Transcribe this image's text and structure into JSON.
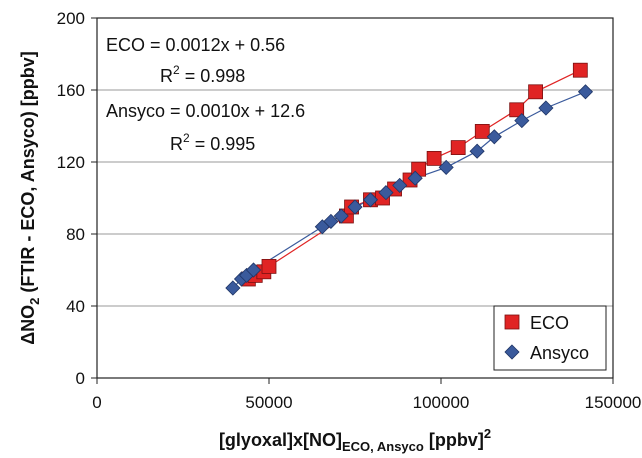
{
  "chart_data": {
    "type": "scatter",
    "xlabel": {
      "main": "[glyoxal]x[NO]",
      "sub": "ECO, Ansyco",
      "unit": " [ppbv]",
      "sup": "2"
    },
    "ylabel": {
      "pre": "ΔNO",
      "sub": "2",
      "post": " (FTIR - ECO, Ansyco) [ppbv]"
    },
    "xlim": [
      0,
      150000
    ],
    "ylim": [
      0,
      200
    ],
    "xticks": [
      0,
      50000,
      100000,
      150000
    ],
    "yticks": [
      0,
      40,
      80,
      120,
      160,
      200
    ],
    "xtick_labels": [
      "0",
      "50000",
      "100000",
      "150000"
    ],
    "ytick_labels": [
      "0",
      "40",
      "80",
      "120",
      "160",
      "200"
    ],
    "grid": "horizontal",
    "legend_position": "bottom-right",
    "annotations": [
      {
        "line1": "ECO = 0.0012x + 0.56",
        "r2_label": "R",
        "r2_sup": "2",
        "r2_value": " = 0.998"
      },
      {
        "line1": "Ansyco = 0.0010x + 12.6",
        "r2_label": "R",
        "r2_sup": "2",
        "r2_value": " = 0.995"
      }
    ],
    "series": [
      {
        "name": "ECO",
        "marker": "square",
        "color": "#e02424",
        "points": [
          [
            44000,
            55
          ],
          [
            46000,
            57
          ],
          [
            48500,
            59
          ],
          [
            50000,
            62
          ],
          [
            72500,
            90
          ],
          [
            74000,
            95
          ],
          [
            79500,
            99
          ],
          [
            83000,
            100
          ],
          [
            86500,
            105
          ],
          [
            91000,
            110
          ],
          [
            93500,
            116
          ],
          [
            98000,
            122
          ],
          [
            105000,
            128
          ],
          [
            112000,
            137
          ],
          [
            122000,
            149
          ],
          [
            127500,
            159
          ],
          [
            140500,
            171
          ]
        ]
      },
      {
        "name": "Ansyco",
        "marker": "diamond",
        "color": "#3a5a9c",
        "points": [
          [
            39500,
            50
          ],
          [
            42000,
            55
          ],
          [
            43500,
            57
          ],
          [
            45500,
            60
          ],
          [
            65500,
            84
          ],
          [
            68000,
            87
          ],
          [
            71000,
            90
          ],
          [
            75000,
            95
          ],
          [
            79500,
            99
          ],
          [
            84000,
            103
          ],
          [
            88000,
            107
          ],
          [
            92500,
            111
          ],
          [
            101500,
            117
          ],
          [
            110500,
            126
          ],
          [
            115500,
            134
          ],
          [
            123500,
            143
          ],
          [
            130500,
            150
          ],
          [
            142000,
            159
          ]
        ]
      }
    ]
  }
}
